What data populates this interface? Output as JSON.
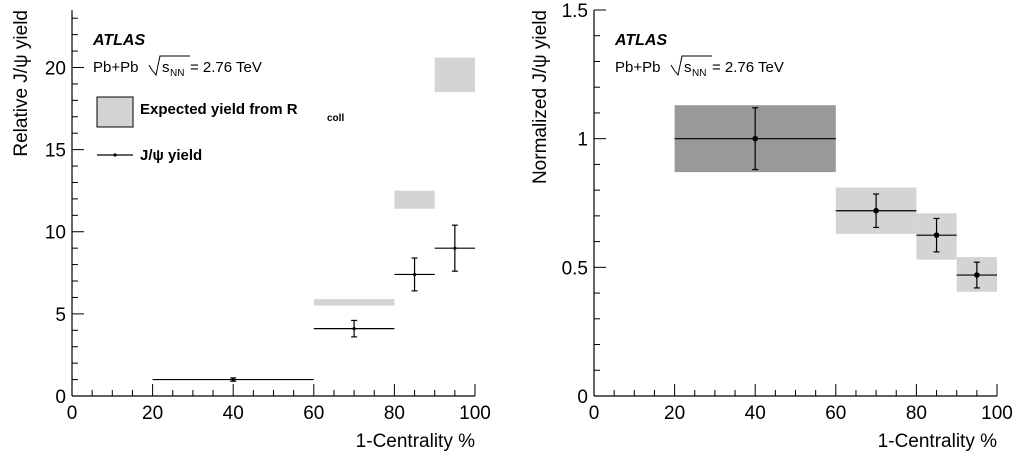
{
  "chart_data": [
    {
      "type": "scatter",
      "xlabel": "1-Centrality %",
      "ylabel": "Relative J/ψ yield",
      "xlim": [
        0,
        100
      ],
      "ylim": [
        0,
        23.5
      ],
      "x_ticks": [
        "0",
        "20",
        "40",
        "60",
        "80",
        "100"
      ],
      "y_ticks": [
        "0",
        "5",
        "10",
        "15",
        "20"
      ],
      "y_tick_values": [
        0,
        5,
        10,
        15,
        20
      ],
      "annotations": {
        "experiment": "ATLAS",
        "collision_prefix": "Pb+Pb ",
        "sqrt_s": "s",
        "sqrt_sub": "NN",
        "energy": " = 2.76 TeV"
      },
      "legend_position": "top-left",
      "legend": {
        "box_label": "Expected yield from R",
        "box_label_sub": "coll",
        "points_label": "J/ψ yield"
      },
      "expected_boxes": [
        {
          "xlo": 60,
          "xhi": 80,
          "ylo": 5.5,
          "yhi": 5.9
        },
        {
          "xlo": 80,
          "xhi": 90,
          "ylo": 11.4,
          "yhi": 12.5
        },
        {
          "xlo": 90,
          "xhi": 100,
          "ylo": 18.5,
          "yhi": 20.6
        }
      ],
      "points": [
        {
          "x": 40,
          "xerr": 20,
          "y": 1.0,
          "yerr": 0.1
        },
        {
          "x": 70,
          "xerr": 10,
          "y": 4.1,
          "yerr": 0.5
        },
        {
          "x": 85,
          "xerr": 5,
          "y": 7.4,
          "yerr": 1.0
        },
        {
          "x": 95,
          "xerr": 5,
          "y": 9.0,
          "yerr": 1.4
        }
      ],
      "colors": {
        "box": "#d4d4d4",
        "points": "#000000"
      }
    },
    {
      "type": "scatter",
      "xlabel": "1-Centrality %",
      "ylabel": "Normalized J/ψ yield",
      "xlim": [
        0,
        100
      ],
      "ylim": [
        0,
        1.5
      ],
      "x_ticks": [
        "0",
        "20",
        "40",
        "60",
        "80",
        "100"
      ],
      "y_ticks": [
        "0",
        "0.5",
        "1",
        "1.5"
      ],
      "y_tick_values": [
        0,
        0.5,
        1,
        1.5
      ],
      "annotations": {
        "experiment": "ATLAS",
        "collision_prefix": "Pb+Pb ",
        "sqrt_s": "s",
        "sqrt_sub": "NN",
        "energy": " = 2.76 TeV"
      },
      "boxes": [
        {
          "xlo": 20,
          "xhi": 60,
          "ylo": 0.87,
          "yhi": 1.13,
          "color": "#999999"
        },
        {
          "xlo": 60,
          "xhi": 80,
          "ylo": 0.63,
          "yhi": 0.81,
          "color": "#d4d4d4"
        },
        {
          "xlo": 80,
          "xhi": 90,
          "ylo": 0.53,
          "yhi": 0.71,
          "color": "#d4d4d4"
        },
        {
          "xlo": 90,
          "xhi": 100,
          "ylo": 0.405,
          "yhi": 0.54,
          "color": "#d4d4d4"
        }
      ],
      "points": [
        {
          "x": 40,
          "xerr": 20,
          "y": 1.0,
          "yerr": 0.12
        },
        {
          "x": 70,
          "xerr": 10,
          "y": 0.72,
          "yerr": 0.065
        },
        {
          "x": 85,
          "xerr": 5,
          "y": 0.625,
          "yerr": 0.065
        },
        {
          "x": 95,
          "xerr": 5,
          "y": 0.47,
          "yerr": 0.05
        }
      ],
      "colors": {
        "points": "#000000"
      }
    }
  ]
}
